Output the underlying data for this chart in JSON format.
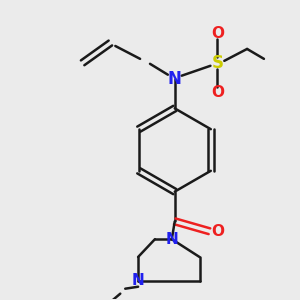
{
  "bg_color": "#ebebeb",
  "bond_color": "#1a1a1a",
  "N_color": "#2020ee",
  "O_color": "#ee2020",
  "S_color": "#cccc00",
  "line_width": 1.8,
  "figsize": [
    3.0,
    3.0
  ],
  "dpi": 100,
  "xlim": [
    0,
    300
  ],
  "ylim": [
    0,
    300
  ]
}
